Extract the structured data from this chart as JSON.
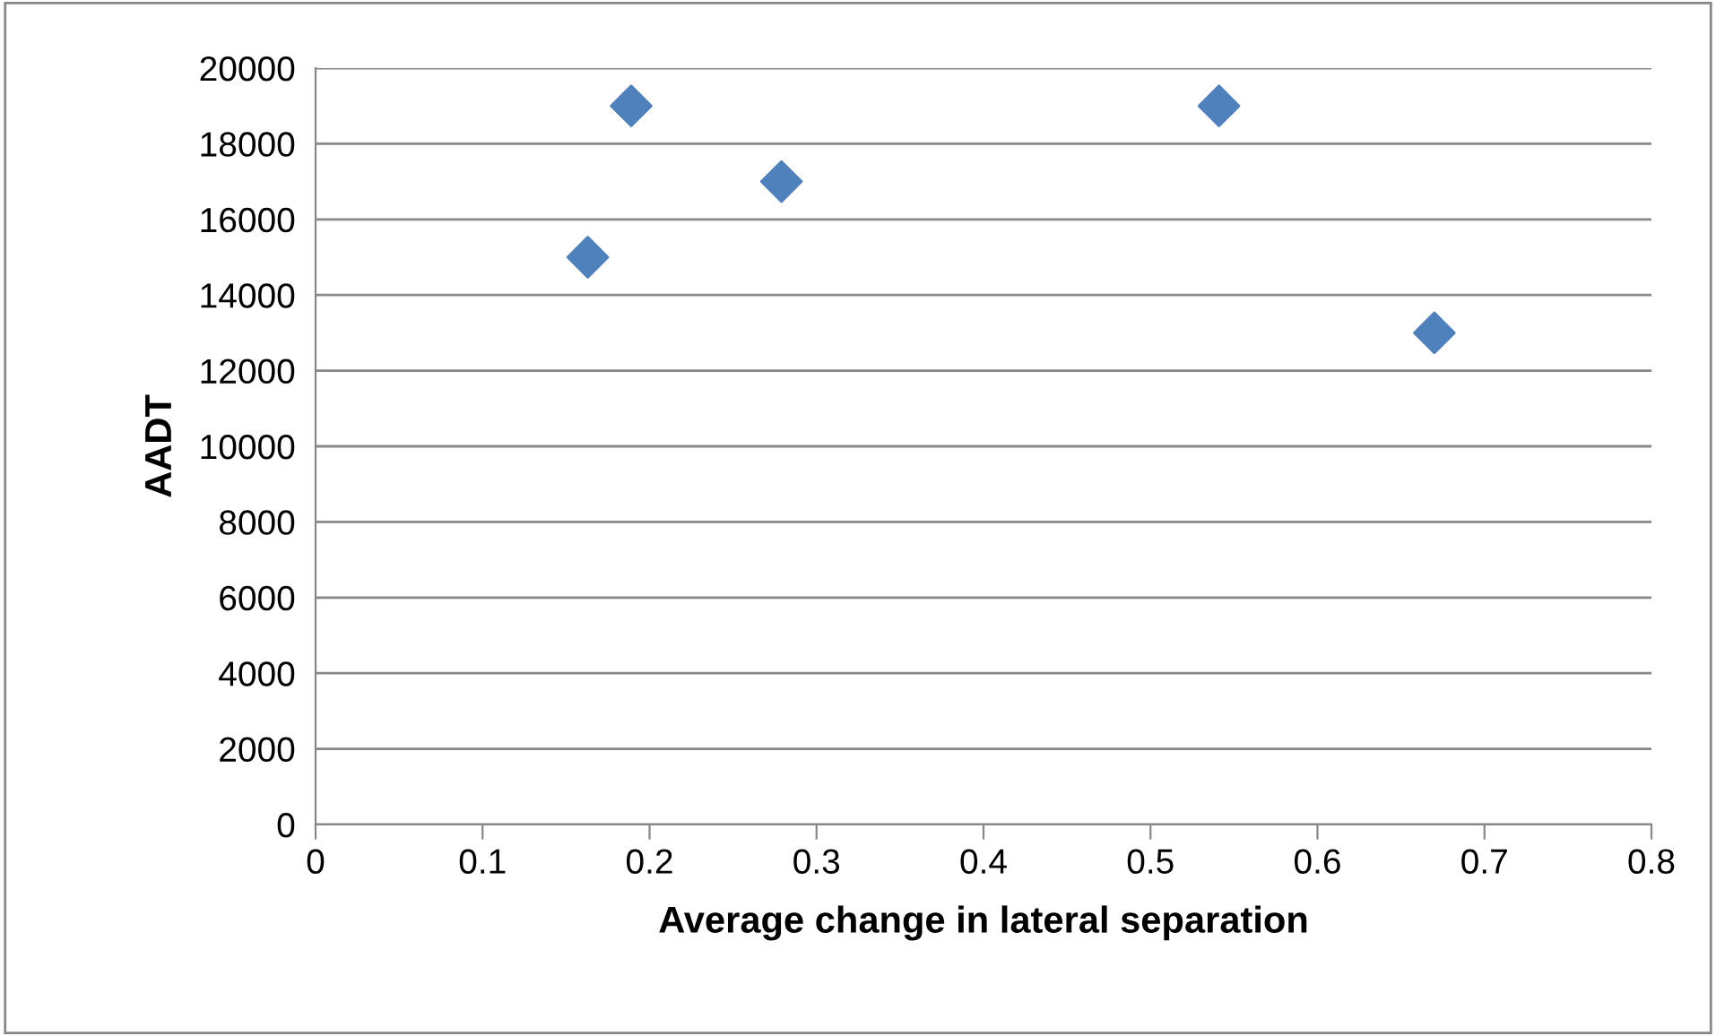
{
  "chart_data": {
    "type": "scatter",
    "xlabel": "Average change in lateral separation",
    "ylabel": "AADT",
    "series": [
      {
        "color": "#4f81bd",
        "x": [
          0.163,
          0.189,
          0.279,
          0.541,
          0.67
        ],
        "values": [
          15000,
          19000,
          17000,
          19000,
          13000
        ]
      }
    ],
    "xlim": [
      0,
      0.8
    ],
    "xticks": [
      0,
      0.1,
      0.2,
      0.3,
      0.4,
      0.5,
      0.6,
      0.7,
      0.8
    ],
    "ylim": [
      0,
      20000
    ],
    "yticks": [
      0,
      2000,
      4000,
      6000,
      8000,
      10000,
      12000,
      14000,
      16000,
      18000,
      20000
    ],
    "grid": "y",
    "marker": "diamond",
    "legend": false
  }
}
